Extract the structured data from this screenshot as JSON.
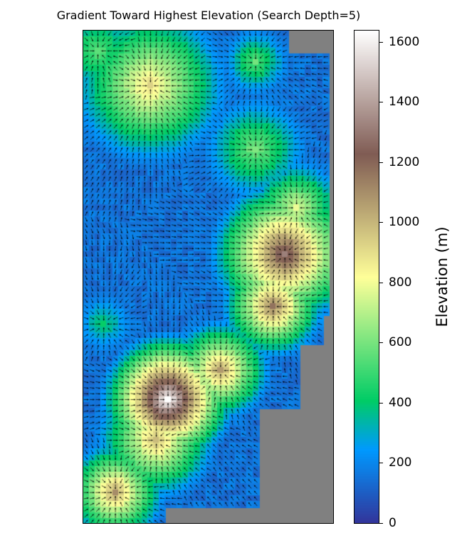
{
  "chart_data": {
    "type": "heatmap",
    "title": "Gradient Toward Highest Elevation (Search Depth=5)",
    "colorbar": {
      "label": "Elevation (m)",
      "ticks": [
        0,
        200,
        400,
        600,
        800,
        1000,
        1200,
        1400,
        1600
      ],
      "range": [
        0,
        1640
      ],
      "colormap": "terrain",
      "colormap_stops": [
        {
          "value": 0,
          "color": "#333399"
        },
        {
          "value": 246,
          "color": "#0099ff"
        },
        {
          "value": 410,
          "color": "#00cc66"
        },
        {
          "value": 820,
          "color": "#ffff99"
        },
        {
          "value": 1230,
          "color": "#805c54"
        },
        {
          "value": 1640,
          "color": "#ffffff"
        }
      ]
    },
    "nodata_color": "#808080",
    "overlay": "quiver arrows pointing toward highest elevation within search depth",
    "grid": {
      "cols": 43,
      "rows": 85
    },
    "peaks": [
      {
        "col": 14,
        "row": 63,
        "elevation": 1640,
        "radius": 6
      },
      {
        "col": 12,
        "row": 70,
        "elevation": 980,
        "radius": 6
      },
      {
        "col": 5,
        "row": 79,
        "elevation": 1050,
        "radius": 5
      },
      {
        "col": 23,
        "row": 58,
        "elevation": 1050,
        "radius": 5
      },
      {
        "col": 34,
        "row": 38,
        "elevation": 1300,
        "radius": 7
      },
      {
        "col": 32,
        "row": 47,
        "elevation": 1150,
        "radius": 5
      },
      {
        "col": 36,
        "row": 30,
        "elevation": 780,
        "radius": 5
      },
      {
        "col": 11,
        "row": 9,
        "elevation": 900,
        "radius": 8
      },
      {
        "col": 2,
        "row": 3,
        "elevation": 540,
        "radius": 6
      },
      {
        "col": 29,
        "row": 20,
        "elevation": 600,
        "radius": 6
      },
      {
        "col": 29,
        "row": 5,
        "elevation": 550,
        "radius": 4
      },
      {
        "col": 3,
        "row": 50,
        "elevation": 400,
        "radius": 4
      }
    ],
    "nodata_cells": [
      {
        "col_start": 35,
        "col_end": 43,
        "row_start": 0,
        "row_end": 4
      },
      {
        "col_start": 42,
        "col_end": 43,
        "row_start": 0,
        "row_end": 50
      },
      {
        "col_start": 41,
        "col_end": 43,
        "row_start": 49,
        "row_end": 55
      },
      {
        "col_start": 37,
        "col_end": 43,
        "row_start": 54,
        "row_end": 66
      },
      {
        "col_start": 30,
        "col_end": 43,
        "row_start": 65,
        "row_end": 85
      },
      {
        "col_start": 14,
        "col_end": 43,
        "row_start": 82,
        "row_end": 85
      }
    ]
  }
}
